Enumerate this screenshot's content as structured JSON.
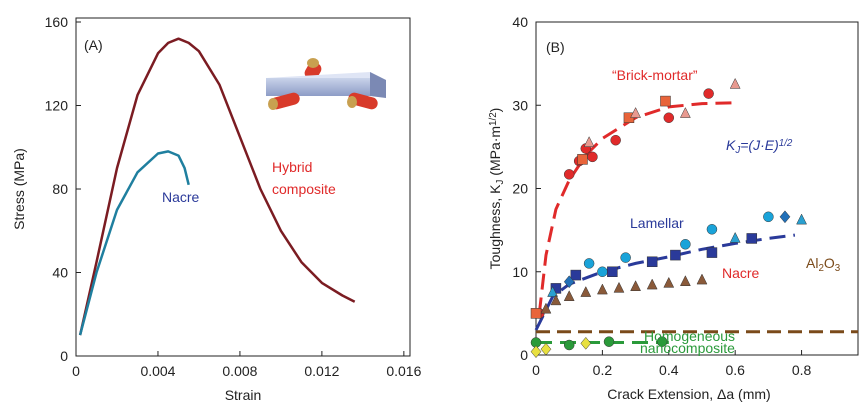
{
  "chart_data": [
    {
      "type": "line",
      "title": "(A)",
      "x_label": "Strain",
      "y_label": "Stress (MPa)",
      "xlim": [
        0,
        0.0163
      ],
      "ylim": [
        0,
        160
      ],
      "xticks": [
        0,
        0.004,
        0.008,
        0.012,
        0.016
      ],
      "yticks": [
        0,
        40,
        80,
        120,
        160
      ],
      "series": [
        {
          "color": "#7b1c22",
          "x": [
            0.0002,
            0.001,
            0.002,
            0.003,
            0.004,
            0.0045,
            0.005,
            0.0055,
            0.006,
            0.007,
            0.008,
            0.009,
            0.01,
            0.011,
            0.012,
            0.013,
            0.0136
          ],
          "values": [
            10,
            45,
            90,
            125,
            145,
            150,
            152,
            150,
            146,
            130,
            105,
            80,
            60,
            45,
            35,
            29,
            26
          ]
        },
        {
          "color": "#1f7f9f",
          "x": [
            0.0002,
            0.001,
            0.002,
            0.003,
            0.004,
            0.0045,
            0.005,
            0.0053,
            0.0055
          ],
          "values": [
            10,
            40,
            70,
            88,
            97,
            98,
            96,
            90,
            82
          ]
        }
      ],
      "annotations": [
        "Nacre",
        "Hybrid",
        "composite"
      ]
    },
    {
      "type": "scatter",
      "title": "(B)",
      "x_label": "Crack Extension, Δa (mm)",
      "y_label": [
        "Toughness, ",
        "K",
        {
          "text": "J",
          "shift": "sub"
        },
        " (MPa·m",
        {
          "text": "1/2",
          "shift": "sup"
        },
        ")"
      ],
      "xlim": [
        0,
        0.97
      ],
      "ylim": [
        0,
        40
      ],
      "xticks": [
        0,
        0.2,
        0.4,
        0.6,
        0.8
      ],
      "yticks": [
        0,
        10,
        20,
        30,
        40
      ],
      "series": [
        {
          "color": "#e02a2a",
          "marker": "circle",
          "x": [
            0.01,
            0.1,
            0.13,
            0.15,
            0.17,
            0.24,
            0.4,
            0.52
          ],
          "values": [
            5,
            21.7,
            23.3,
            24.8,
            23.8,
            25.8,
            28.5,
            31.4
          ]
        },
        {
          "color": "#e8643a",
          "marker": "square",
          "x": [
            0,
            0.14,
            0.28,
            0.39
          ],
          "values": [
            5,
            23.5,
            28.5,
            30.5
          ]
        },
        {
          "color": "#e89a90",
          "marker": "triangle",
          "x": [
            0.16,
            0.3,
            0.45,
            0.6
          ],
          "values": [
            25.5,
            29,
            29,
            32.5
          ]
        },
        {
          "color": "#1aa3d9",
          "marker": "circle",
          "x": [
            0.16,
            0.2,
            0.27,
            0.45,
            0.53,
            0.7
          ],
          "values": [
            11,
            10,
            11.7,
            13.3,
            15.1,
            16.6
          ]
        },
        {
          "color": "#2a3a9a",
          "marker": "square",
          "x": [
            0.06,
            0.12,
            0.23,
            0.35,
            0.42,
            0.53,
            0.65
          ],
          "values": [
            8,
            9.6,
            10,
            11.2,
            12,
            12.3,
            14
          ]
        },
        {
          "color": "#2270b8",
          "marker": "diamond",
          "x": [
            0.1,
            0.75
          ],
          "values": [
            8.8,
            16.6
          ]
        },
        {
          "color": "#2aa0d0",
          "marker": "triangle",
          "x": [
            0.05,
            0.6,
            0.8
          ],
          "values": [
            7.5,
            14,
            16.2
          ]
        },
        {
          "color": "#8a5a3a",
          "marker": "triangle",
          "x": [
            0.03,
            0.06,
            0.1,
            0.15,
            0.2,
            0.25,
            0.3,
            0.35,
            0.4,
            0.45,
            0.5
          ],
          "values": [
            5.5,
            6.5,
            7,
            7.5,
            7.8,
            8,
            8.2,
            8.4,
            8.6,
            8.8,
            9
          ]
        },
        {
          "color": "#2a9a3a",
          "marker": "circle",
          "x": [
            0,
            0.1,
            0.22,
            0.38
          ],
          "values": [
            1.5,
            1.2,
            1.6,
            1.6
          ]
        },
        {
          "color": "#e8e040",
          "marker": "diamond",
          "x": [
            0,
            0.03,
            0.15
          ],
          "values": [
            0.4,
            0.7,
            1.4
          ]
        }
      ],
      "fits": [
        {
          "color": "#e02a2a",
          "x": [
            0.01,
            0.03,
            0.06,
            0.1,
            0.15,
            0.2,
            0.3,
            0.4,
            0.5,
            0.6
          ],
          "values": [
            5,
            12,
            17.5,
            21,
            24,
            26,
            28.5,
            29.8,
            30.2,
            30.3
          ]
        },
        {
          "color": "#2a3a9a",
          "x": [
            0,
            0.05,
            0.1,
            0.2,
            0.3,
            0.4,
            0.5,
            0.6,
            0.7,
            0.78
          ],
          "values": [
            3,
            7,
            8.5,
            10,
            11,
            11.8,
            12.7,
            13.4,
            14,
            14.4
          ]
        },
        {
          "color": "#2a9a3a",
          "x": [
            0,
            0.4
          ],
          "values": [
            1.5,
            1.5
          ]
        }
      ],
      "hlines": [
        {
          "value": 2.8,
          "color": "#7a4a1a"
        }
      ],
      "annotations": [
        "“Brick-mortar”",
        [
          "K",
          {
            "text": "J",
            "shift": "sub"
          },
          "=(J·E)",
          {
            "text": "1/2",
            "shift": "sup"
          }
        ],
        "Lamellar",
        "Nacre",
        [
          "Al",
          {
            "text": "2",
            "shift": "sub"
          },
          "O",
          {
            "text": "3",
            "shift": "sub"
          }
        ],
        "Homogeneous",
        "nanocomposite"
      ]
    }
  ]
}
